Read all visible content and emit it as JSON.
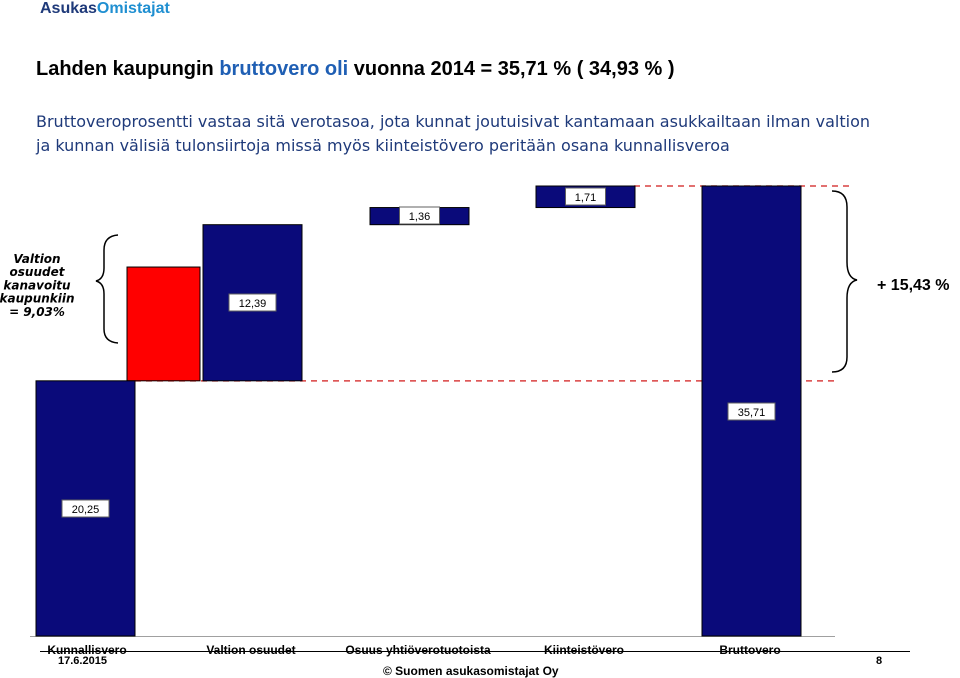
{
  "header": {
    "brand_part1": "Asukas",
    "brand_part2": "Omistajat",
    "title_prefix": "Lahden kaupungin ",
    "title_highlight": "bruttovero oli",
    "title_suffix": " vuonna 2014 = 35,71 % ( 34,93 % )",
    "description_line1": "Bruttoveroprosentti vastaa sitä verotasoa, jota kunnat joutuisivat kantamaan asukkailtaan ilman valtion",
    "description_line2": "ja kunnan välisiä tulonsiirtoja missä myös kiinteistövero peritään osana kunnallisveroa"
  },
  "chart_data": {
    "type": "bar",
    "subtype": "waterfall",
    "categories": [
      "Kunnallisvero",
      "Valtion osuudet",
      "Osuus yhtiöverotuotoista",
      "Kiinteistövero",
      "Bruttovero"
    ],
    "values": [
      20.25,
      12.39,
      1.36,
      1.71,
      35.71
    ],
    "value_labels": [
      "20,25",
      "12,39",
      "1,36",
      "1,71",
      "35,71"
    ],
    "ylim": [
      0,
      36.5
    ],
    "grid": false,
    "annotations": {
      "left_brace_text": [
        "Valtion",
        "osuudet",
        "kanavoitu",
        "kaupunkiin",
        "= 9,03%"
      ],
      "left_brace_value": 9.03,
      "right_brace_text": "+ 15,43 %",
      "right_brace_value": 15.43
    },
    "colors": {
      "bar": "#0a0a7a",
      "highlight": "#ff0000",
      "dashed_line": "#d94040"
    }
  },
  "footer": {
    "date": "17.6.2015",
    "copyright": "© Suomen asukasomistajat Oy",
    "page_number": "8"
  }
}
